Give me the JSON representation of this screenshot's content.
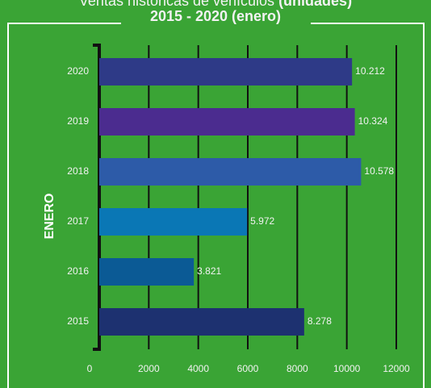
{
  "chart_data": {
    "type": "barh",
    "title": "Ventas históricas de vehículos",
    "title_emphasis": "(unidades)",
    "subtitle": "2015 - 2020 (enero)",
    "y_label": "ENERO",
    "categories": [
      "2020",
      "2019",
      "2018",
      "2017",
      "2016",
      "2015"
    ],
    "values": [
      10212,
      10324,
      10578,
      5972,
      3821,
      8278
    ],
    "value_labels": [
      "10.212",
      "10.324",
      "10.578",
      "5.972",
      "3.821",
      "8.278"
    ],
    "colors": [
      "#2e3a87",
      "#4b2c8f",
      "#2d5ba8",
      "#0a77b5",
      "#0b5a95",
      "#1d3170"
    ],
    "xlim": [
      0,
      12000
    ],
    "xticks": [
      0,
      2000,
      4000,
      6000,
      8000,
      10000,
      12000
    ],
    "grid": true
  }
}
